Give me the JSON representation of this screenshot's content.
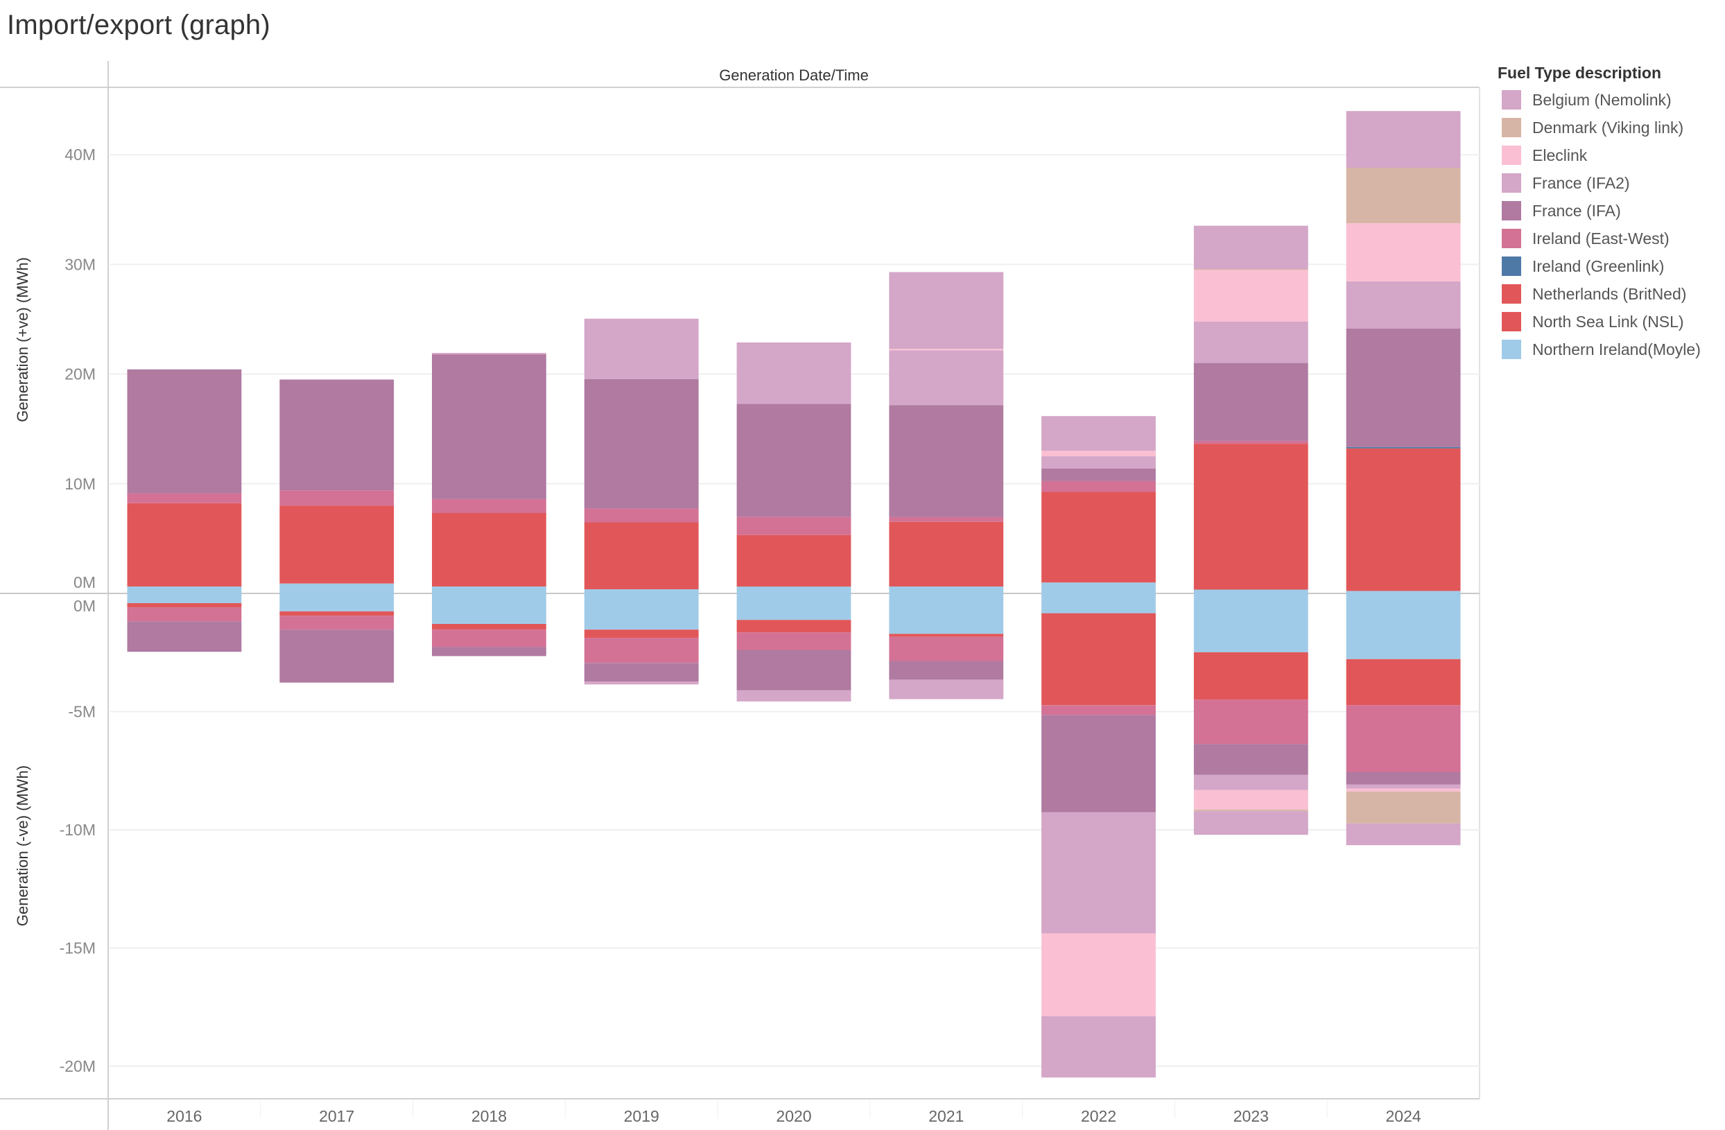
{
  "page": {
    "title": "Import/export (graph)"
  },
  "legend": {
    "title": "Fuel Type description",
    "items": [
      {
        "label": "Belgium (Nemolink)",
        "color": "#d4a6c8"
      },
      {
        "label": "Denmark (Viking link)",
        "color": "#d7b5a6"
      },
      {
        "label": "Eleclink",
        "color": "#fabfd2"
      },
      {
        "label": "France (IFA2)",
        "color": "#d4a6c8"
      },
      {
        "label": "France (IFA)",
        "color": "#b07aa1"
      },
      {
        "label": "Ireland (East-West)",
        "color": "#d37295"
      },
      {
        "label": "Ireland (Greenlink)",
        "color": "#4e79a7"
      },
      {
        "label": "Netherlands (BritNed)",
        "color": "#e15759"
      },
      {
        "label": "North Sea Link (NSL)",
        "color": "#e15759"
      },
      {
        "label": "Northern Ireland(Moyle)",
        "color": "#a0cbe8"
      }
    ]
  },
  "chart_data": {
    "type": "bar",
    "stacked": true,
    "column_header": "Generation Date/Time",
    "categories": [
      "2016",
      "2017",
      "2018",
      "2019",
      "2020",
      "2021",
      "2022",
      "2023",
      "2024"
    ],
    "panels": [
      {
        "name": "positive",
        "ylabel": "Generation (+ve) (MWh)",
        "ylim": [
          0,
          45
        ],
        "unit_multiplier": "M",
        "ticks": [
          {
            "value": 0,
            "label": "0M"
          },
          {
            "value": 10,
            "label": "10M"
          },
          {
            "value": 20,
            "label": "20M"
          },
          {
            "value": 30,
            "label": "30M"
          },
          {
            "value": 40,
            "label": "40M"
          }
        ],
        "stack_order": [
          "Northern Ireland(Moyle)",
          "Netherlands (BritNed)",
          "North Sea Link (NSL)",
          "Ireland (Greenlink)",
          "Ireland (East-West)",
          "France (IFA)",
          "France (IFA2)",
          "Eleclink",
          "Denmark (Viking link)",
          "Belgium (Nemolink)"
        ],
        "series": [
          {
            "name": "Northern Ireland(Moyle)",
            "values": [
              0.63,
              0.9,
              0.63,
              0.38,
              0.63,
              0.63,
              1.0,
              0.35,
              0.23
            ]
          },
          {
            "name": "Netherlands (BritNed)",
            "values": [
              7.6,
              7.1,
              6.7,
              6.1,
              4.7,
              5.9,
              8.26,
              13.3,
              13.0
            ]
          },
          {
            "name": "North Sea Link (NSL)",
            "values": [
              0,
              0,
              0,
              0,
              0,
              0,
              0,
              0,
              0
            ]
          },
          {
            "name": "Ireland (Greenlink)",
            "values": [
              0,
              0,
              0,
              0,
              0,
              0,
              0,
              0,
              0.12
            ]
          },
          {
            "name": "Ireland (East-West)",
            "values": [
              0.9,
              1.4,
              1.27,
              1.27,
              1.65,
              0.44,
              0.99,
              0.26,
              0
            ]
          },
          {
            "name": "France (IFA)",
            "values": [
              11.3,
              10.1,
              13.2,
              11.8,
              10.3,
              10.2,
              1.13,
              7.1,
              10.8
            ]
          },
          {
            "name": "France (IFA2)",
            "values": [
              0,
              0,
              0.13,
              5.5,
              5.6,
              5.0,
              1.13,
              3.78,
              4.3
            ]
          },
          {
            "name": "Eleclink",
            "values": [
              0,
              0,
              0,
              0,
              0,
              0.13,
              0.49,
              4.7,
              5.3
            ]
          },
          {
            "name": "Denmark (Viking link)",
            "values": [
              0,
              0,
              0,
              0,
              0,
              0,
              0,
              0.09,
              5.06
            ]
          },
          {
            "name": "Belgium (Nemolink)",
            "values": [
              0,
              0,
              0,
              0,
              0,
              7.0,
              3.17,
              3.95,
              5.17
            ]
          }
        ]
      },
      {
        "name": "negative",
        "ylabel": "Generation (-ve) (MWh)",
        "ylim": [
          -21.5,
          0
        ],
        "unit_multiplier": "M",
        "ticks": [
          {
            "value": 0,
            "label": "0M"
          },
          {
            "value": -5,
            "label": "-5M"
          },
          {
            "value": -10,
            "label": "-10M"
          },
          {
            "value": -15,
            "label": "-15M"
          },
          {
            "value": -20,
            "label": "-20M"
          }
        ],
        "stack_order": [
          "Northern Ireland(Moyle)",
          "Netherlands (BritNed)",
          "North Sea Link (NSL)",
          "Ireland (Greenlink)",
          "Ireland (East-West)",
          "France (IFA)",
          "France (IFA2)",
          "Eleclink",
          "Denmark (Viking link)",
          "Belgium (Nemolink)"
        ],
        "series": [
          {
            "name": "Northern Ireland(Moyle)",
            "values": [
              -0.41,
              -0.76,
              -1.29,
              -1.53,
              -1.12,
              -1.71,
              -0.84,
              -2.49,
              -2.78
            ]
          },
          {
            "name": "Netherlands (BritNed)",
            "values": [
              -0.18,
              -0.18,
              -0.24,
              -0.35,
              -0.53,
              -0.12,
              -3.89,
              -2.0,
              -1.95
            ]
          },
          {
            "name": "North Sea Link (NSL)",
            "values": [
              0,
              0,
              0,
              0,
              0,
              0,
              0,
              0,
              0
            ]
          },
          {
            "name": "Ireland (Greenlink)",
            "values": [
              0,
              0,
              0,
              0,
              0,
              0,
              0,
              0,
              0
            ]
          },
          {
            "name": "Ireland (East-West)",
            "values": [
              -0.59,
              -0.59,
              -0.74,
              -1.06,
              -0.74,
              -1.03,
              -0.41,
              -1.88,
              -2.82
            ]
          },
          {
            "name": "France (IFA)",
            "values": [
              -1.29,
              -2.24,
              -0.38,
              -0.79,
              -1.71,
              -0.79,
              -4.12,
              -1.3,
              -0.53
            ]
          },
          {
            "name": "France (IFA2)",
            "values": [
              0,
              0,
              0,
              -0.12,
              -0.47,
              -0.82,
              -5.12,
              -0.65,
              -0.18
            ]
          },
          {
            "name": "Eleclink",
            "values": [
              0,
              0,
              0,
              0,
              0,
              0,
              -3.51,
              -0.82,
              -0.12
            ]
          },
          {
            "name": "Denmark (Viking link)",
            "values": [
              0,
              0,
              0,
              0,
              0,
              0,
              0,
              -0.07,
              -1.35
            ]
          },
          {
            "name": "Belgium (Nemolink)",
            "values": [
              0,
              0,
              0,
              0,
              0,
              0,
              -2.59,
              -1.0,
              -0.92
            ]
          }
        ]
      }
    ],
    "grid": true,
    "legend_position": "right"
  }
}
